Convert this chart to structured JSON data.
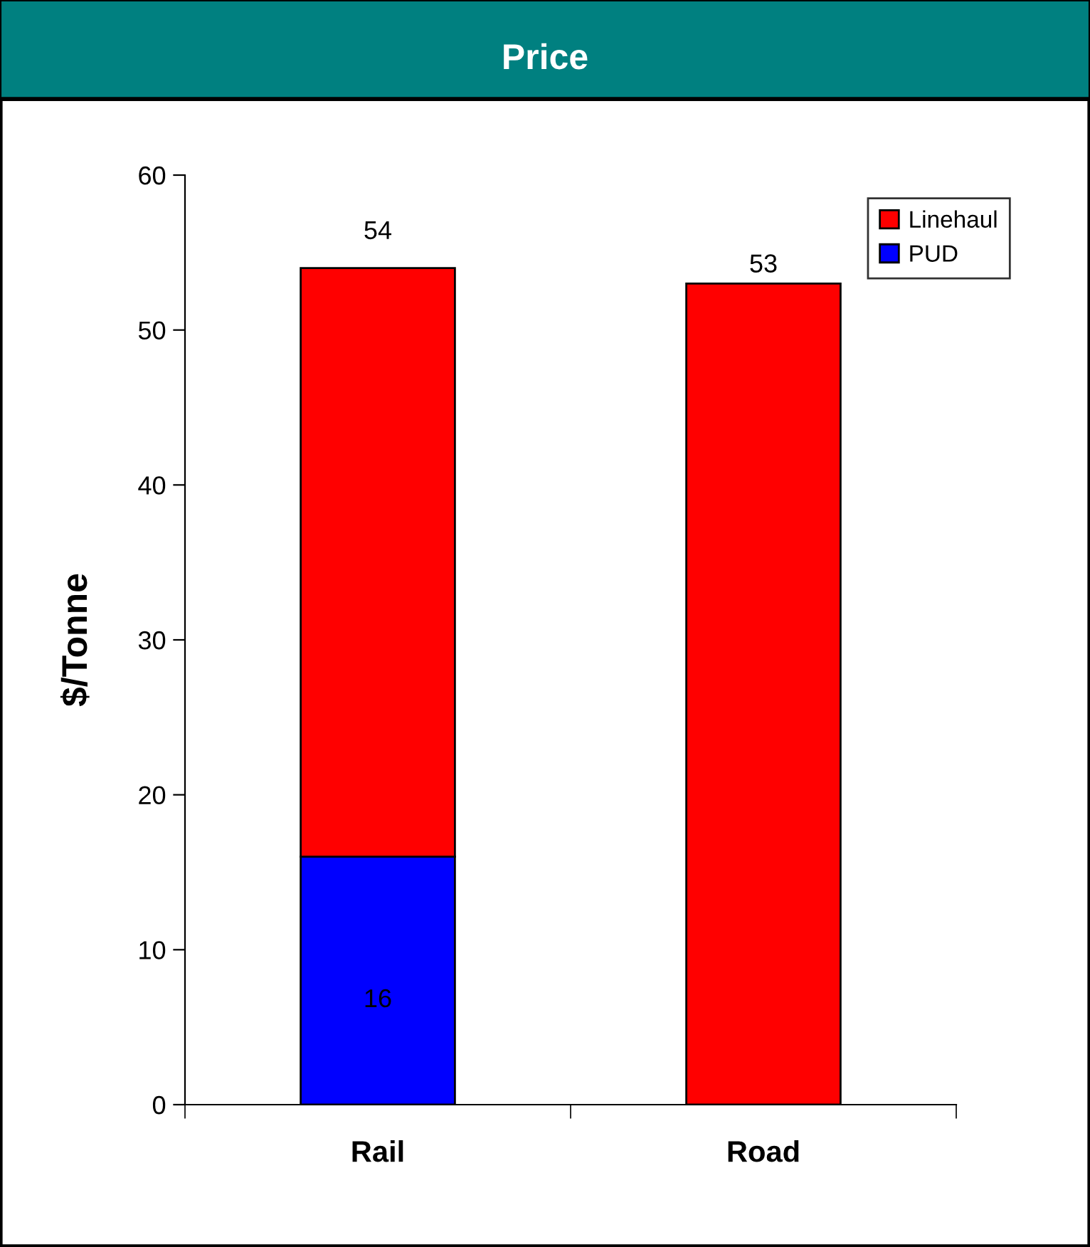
{
  "chart_data": {
    "type": "bar",
    "title": "Price",
    "ylabel": "$/Tonne",
    "stacked": true,
    "categories": [
      "Rail",
      "Road"
    ],
    "series": [
      {
        "name": "PUD",
        "color": "#0000ff",
        "values": [
          16,
          0
        ],
        "value_labels": [
          "16",
          null
        ]
      },
      {
        "name": "Linehaul",
        "color": "#ff0000",
        "values": [
          38,
          53
        ]
      }
    ],
    "totals": [
      "54",
      "53"
    ],
    "ylim": [
      0,
      60
    ],
    "yticks": [
      0,
      10,
      20,
      30,
      40,
      50,
      60
    ],
    "grid": false,
    "legend": "top right"
  }
}
